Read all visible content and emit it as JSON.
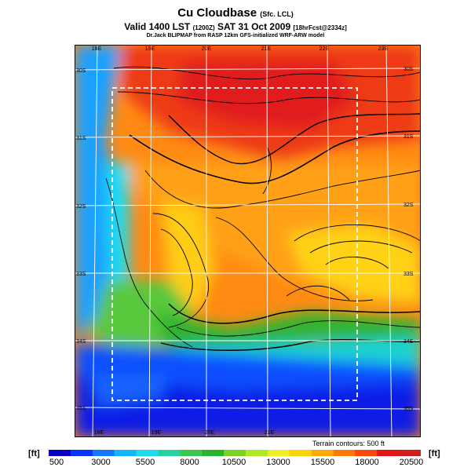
{
  "header": {
    "title_main": "Cu Cloudbase",
    "title_sub": "(Sfc. LCL)",
    "valid_main": "Valid 1400 LST",
    "valid_small": "(1200Z)",
    "valid_date": "SAT 31 Oct 2009",
    "valid_tag": "[18hrFcst@2334z]",
    "model_line": "Dr.Jack BLIPMAP from RASP 12km GFS-initialized WRF-ARW model"
  },
  "map": {
    "lon_labels_top": [
      "18E",
      "19E",
      "20E",
      "21E",
      "22E",
      "23E"
    ],
    "lon_labels_bottom": [
      "18E",
      "19E",
      "20E",
      "21E"
    ],
    "lat_labels_left": [
      "30S",
      "31S",
      "32S",
      "33S",
      "34S",
      "35S"
    ],
    "lat_labels_right": [
      "30S",
      "31S",
      "32S",
      "33S",
      "34S",
      "35S"
    ],
    "terrain_note": "Terrain contours: 500 ft"
  },
  "colorbar": {
    "unit_left": "[ft]",
    "unit_right": "[ft]",
    "labels": [
      "500",
      "3000",
      "5500",
      "8000",
      "10500",
      "13000",
      "15500",
      "18000",
      "20500"
    ],
    "colors": [
      "#0a00c8",
      "#0a32ff",
      "#1478ff",
      "#14b4ff",
      "#1edcf0",
      "#28d2a0",
      "#3cc850",
      "#28b428",
      "#78d228",
      "#b4e628",
      "#ebf01e",
      "#ffd20a",
      "#ffaa0a",
      "#ff780a",
      "#ff460a",
      "#e61414",
      "#d21e1e"
    ]
  }
}
